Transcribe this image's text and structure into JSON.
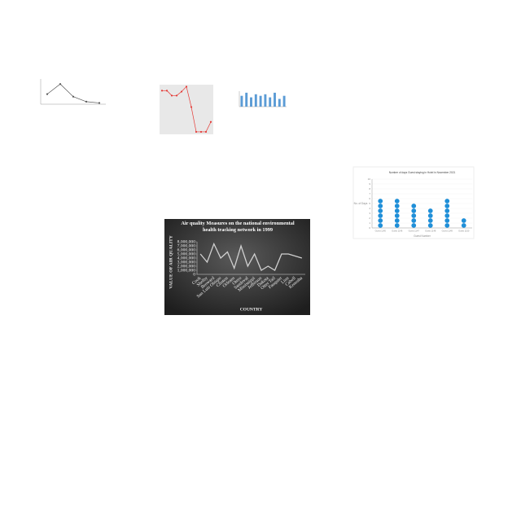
{
  "chart_data": [
    {
      "type": "line",
      "color": "#555555",
      "values": [
        4,
        8,
        3,
        1,
        0.5
      ],
      "ylim": [
        0,
        10
      ]
    },
    {
      "type": "line",
      "color": "#e53935",
      "background": "#e8e8e8",
      "values": [
        88,
        88,
        78,
        78,
        86,
        96,
        55,
        5,
        5,
        5,
        25
      ],
      "ylim": [
        0,
        100
      ]
    },
    {
      "type": "bar",
      "color": "#5b9bd5",
      "values": [
        7,
        9,
        6,
        8,
        7,
        8,
        6,
        9,
        5,
        7
      ],
      "ylim": [
        0,
        10
      ]
    },
    {
      "type": "dot",
      "color": "#1f8fd8",
      "title": "Number of days Guest staying in Hotel in November 2021",
      "ylabel": "No. of Days",
      "xlabel": "Guest Number",
      "categories": [
        "Guest 1145",
        "Guest 1146",
        "Guest 1147",
        "Guest 1148",
        "Guest 1149",
        "Guest 1150"
      ],
      "values": [
        6,
        6,
        5,
        4,
        6,
        2
      ],
      "ylim": [
        0,
        10
      ],
      "yticks": [
        0,
        1,
        2,
        3,
        4,
        5,
        6,
        7,
        8,
        9,
        10
      ]
    },
    {
      "type": "line",
      "color": "#d0d0d0",
      "title": "Air quality Measures on the national environmental health tracking network in 1999",
      "xlabel": "COUNTRY",
      "ylabel": "VALUE OF AIR QUALITY",
      "categories": [
        "Cook",
        "Shelby",
        "Broward",
        "San Luis Obispo",
        "Clinton",
        "Orleans",
        "Otero",
        "Sandoval",
        "Mississippi",
        "Jefferson",
        "Dakota",
        "Otter Tail",
        "Fauquier",
        "Linn",
        "Cabell",
        "Kenosha"
      ],
      "values": [
        5000000,
        3000000,
        7500000,
        4000000,
        5500000,
        1500000,
        7000000,
        2000000,
        5000000,
        1000000,
        2000000,
        1000000,
        5000000,
        5000000,
        4500000,
        4000000
      ],
      "ylim": [
        0,
        8000000
      ],
      "yticks": [
        0,
        {
          "value": 1000000,
          "label": "1,000,000"
        },
        {
          "value": 2000000,
          "label": "2,000,000"
        },
        {
          "value": 3000000,
          "label": "3,000,000"
        },
        {
          "value": 4000000,
          "label": "4,000,000"
        },
        {
          "value": 5000000,
          "label": "5,000,000"
        },
        {
          "value": 6000000,
          "label": "6,000,000"
        },
        {
          "value": 7000000,
          "label": "7,000,000"
        },
        {
          "value": 8000000,
          "label": "8,000,000"
        }
      ]
    }
  ]
}
